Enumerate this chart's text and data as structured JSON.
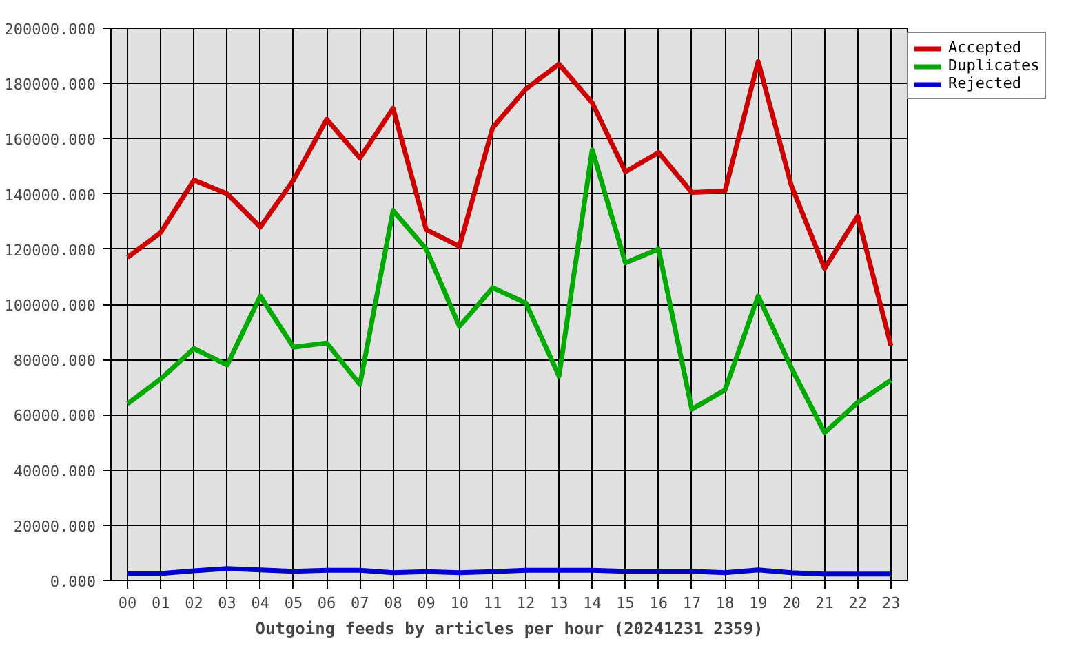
{
  "chart_data": {
    "type": "line",
    "xlabel": "Outgoing feeds by articles per hour (20241231 2359)",
    "categories": [
      "00",
      "01",
      "02",
      "03",
      "04",
      "05",
      "06",
      "07",
      "08",
      "09",
      "10",
      "11",
      "12",
      "13",
      "14",
      "15",
      "16",
      "17",
      "18",
      "19",
      "20",
      "21",
      "22",
      "23"
    ],
    "series": [
      {
        "name": "Accepted",
        "color": "#cc0000",
        "values": [
          117000,
          126000,
          145000,
          140000,
          128000,
          145000,
          167000,
          153000,
          171000,
          127000,
          121000,
          164000,
          178000,
          187000,
          173000,
          148000,
          155000,
          140500,
          141000,
          188000,
          143000,
          113000,
          132000,
          85000
        ]
      },
      {
        "name": "Duplicates",
        "color": "#00aa00",
        "values": [
          64000,
          73000,
          84000,
          78000,
          103000,
          84500,
          86000,
          71000,
          134000,
          120000,
          92000,
          106000,
          100500,
          74000,
          156000,
          115000,
          120000,
          62000,
          69000,
          103000,
          77000,
          53500,
          64500,
          72500
        ]
      },
      {
        "name": "Rejected",
        "color": "#0000cc",
        "values": [
          2500,
          2500,
          3500,
          4300,
          3800,
          3300,
          3700,
          3700,
          2800,
          3200,
          2800,
          3200,
          3700,
          3700,
          3700,
          3300,
          3300,
          3300,
          2800,
          3800,
          2800,
          2300,
          2300,
          2300
        ]
      }
    ],
    "ylim": [
      0,
      200000
    ],
    "yticks": [
      {
        "value": 0,
        "label": "0.000"
      },
      {
        "value": 20000,
        "label": "20000.000"
      },
      {
        "value": 40000,
        "label": "40000.000"
      },
      {
        "value": 60000,
        "label": "60000.000"
      },
      {
        "value": 80000,
        "label": "80000.000"
      },
      {
        "value": 100000,
        "label": "100000.000"
      },
      {
        "value": 120000,
        "label": "120000.000"
      },
      {
        "value": 140000,
        "label": "140000.000"
      },
      {
        "value": 160000,
        "label": "160000.000"
      },
      {
        "value": 180000,
        "label": "180000.000"
      },
      {
        "value": 200000,
        "label": "200000.000"
      }
    ],
    "grid": true,
    "legend": "top right",
    "line_style": "solid"
  }
}
